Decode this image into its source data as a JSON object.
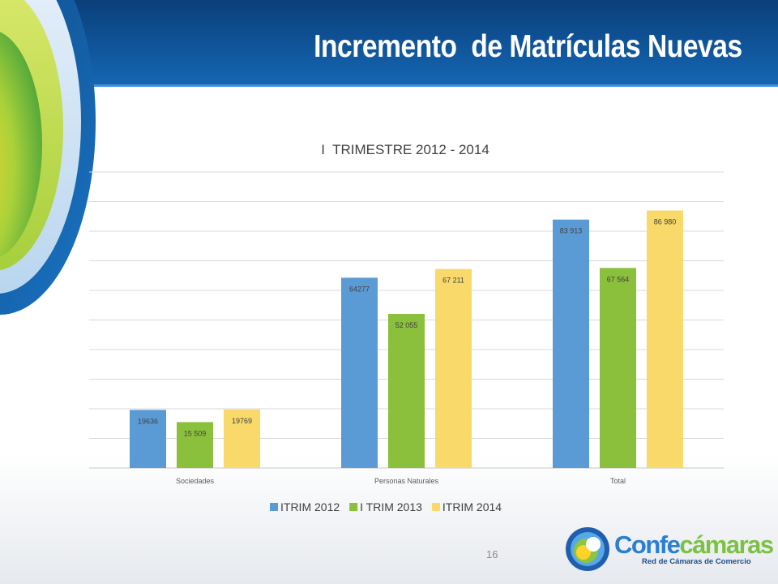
{
  "slide": {
    "title": "Incremento  de Matrículas Nuevas",
    "page_number": "16"
  },
  "logo": {
    "brand_part1": "Confe",
    "brand_part2": "cámaras",
    "tagline": "Red de Cámaras de Comercio"
  },
  "colors": {
    "header_dark": "#0a3f7a",
    "header_light": "#1466b3",
    "series": [
      "#5b9bd5",
      "#8bc03c",
      "#f9d96a"
    ],
    "gridline": "#d9d9d9",
    "label_text": "#404040"
  },
  "chart_data": {
    "type": "bar",
    "title": "I  TRIMESTRE 2012 - 2014",
    "xlabel": "",
    "ylabel": "",
    "ylim": [
      0,
      100000
    ],
    "grid": true,
    "gridline_step": 10000,
    "legend_position": "bottom",
    "categories": [
      "Sociedades",
      "Personas Naturales",
      "Total"
    ],
    "series": [
      {
        "name": "ITRIM 2012",
        "color": "#5b9bd5",
        "values": [
          19636,
          64277,
          83913
        ],
        "labels": [
          "19636",
          "64277",
          "83 913"
        ]
      },
      {
        "name": "I TRIM 2013",
        "color": "#8bc03c",
        "values": [
          15509,
          52055,
          67564
        ],
        "labels": [
          "15 509",
          "52 055",
          "67 564"
        ]
      },
      {
        "name": "ITRIM 2014",
        "color": "#f9d96a",
        "values": [
          19769,
          67211,
          86980
        ],
        "labels": [
          "19769",
          "67 211",
          "86 980"
        ]
      }
    ]
  }
}
